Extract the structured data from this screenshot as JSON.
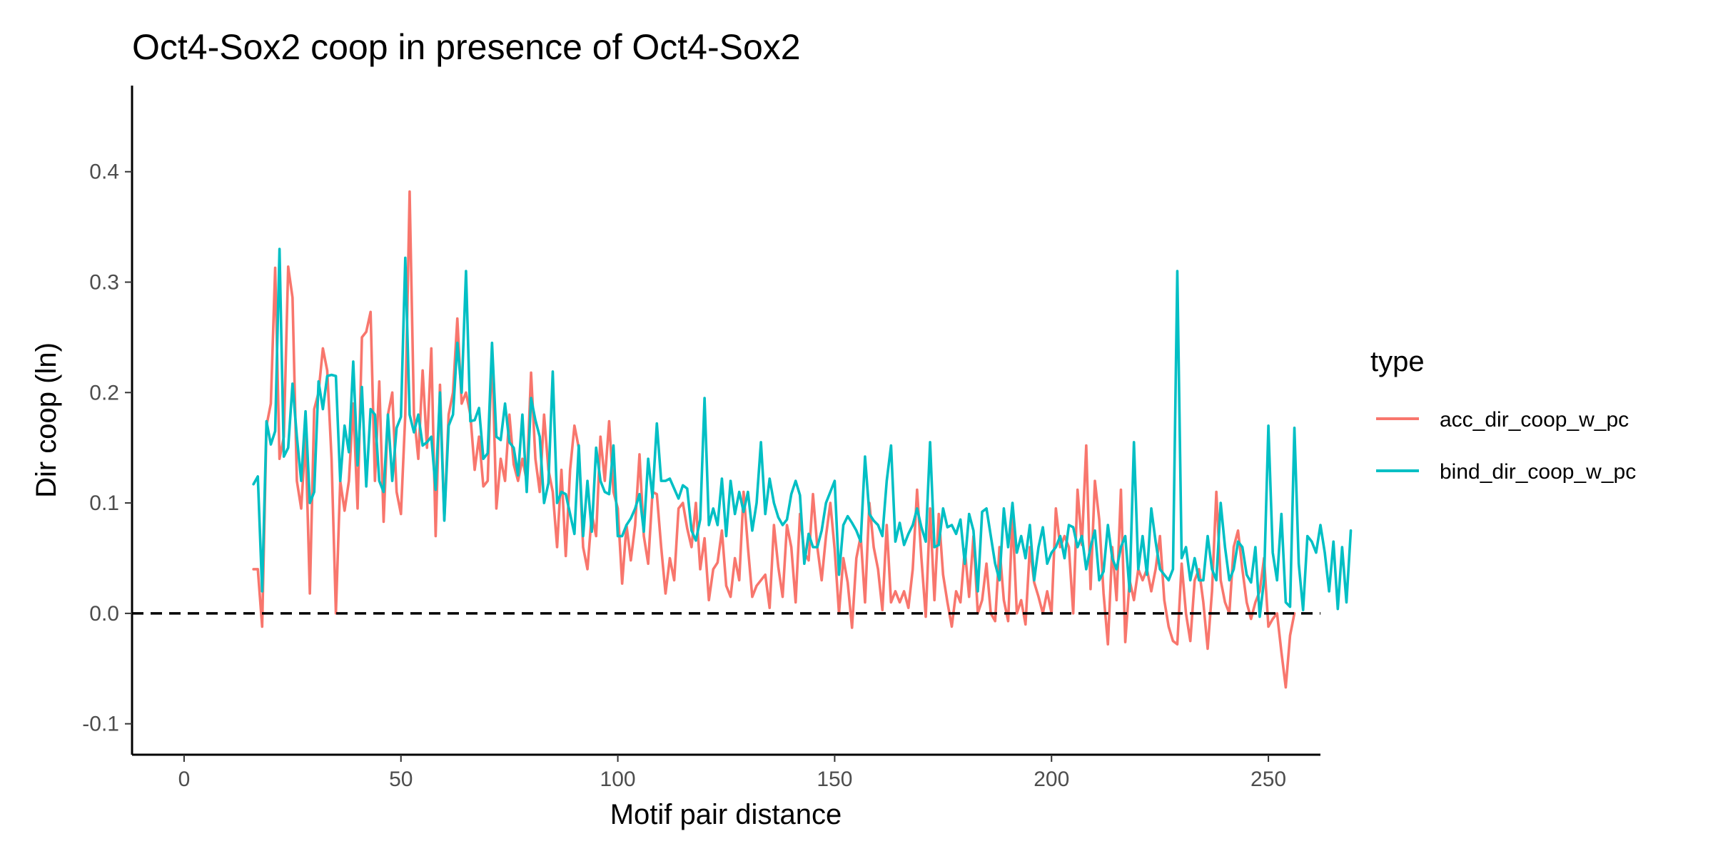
{
  "chart_data": {
    "type": "line",
    "title": "Oct4-Sox2 coop in presence of Oct4-Sox2",
    "xlabel": "Motif pair distance",
    "ylabel": "Dir coop (ln)",
    "xlim": [
      -12,
      262
    ],
    "ylim": [
      -0.128,
      0.478
    ],
    "x_ticks": [
      0,
      50,
      100,
      150,
      200,
      250
    ],
    "y_ticks": [
      -0.1,
      0.0,
      0.1,
      0.2,
      0.3,
      0.4
    ],
    "x_tick_labels": [
      "0",
      "50",
      "100",
      "150",
      "200",
      "250"
    ],
    "y_tick_labels": [
      "-0.1",
      "0.0",
      "0.1",
      "0.2",
      "0.3",
      "0.4"
    ],
    "reference_line": {
      "y": 0.0,
      "style": "dashed",
      "color": "#000000"
    },
    "grid": false,
    "legend": {
      "title": "type",
      "position": "right"
    },
    "series": [
      {
        "name": "acc_dir_coop_w_pc",
        "color": "#F8766D",
        "x_start": 16,
        "values": [
          0.04,
          0.04,
          -0.012,
          0.17,
          0.19,
          0.313,
          0.14,
          0.16,
          0.314,
          0.286,
          0.12,
          0.095,
          0.16,
          0.018,
          0.185,
          0.2,
          0.24,
          0.22,
          0.14,
          0.0,
          0.12,
          0.093,
          0.12,
          0.19,
          0.095,
          0.25,
          0.255,
          0.273,
          0.12,
          0.21,
          0.083,
          0.18,
          0.2,
          0.11,
          0.09,
          0.18,
          0.382,
          0.18,
          0.14,
          0.22,
          0.15,
          0.24,
          0.07,
          0.207,
          0.085,
          0.18,
          0.2,
          0.267,
          0.19,
          0.2,
          0.18,
          0.13,
          0.16,
          0.115,
          0.12,
          0.24,
          0.095,
          0.14,
          0.12,
          0.18,
          0.135,
          0.12,
          0.14,
          0.12,
          0.218,
          0.14,
          0.11,
          0.18,
          0.13,
          0.11,
          0.06,
          0.13,
          0.052,
          0.13,
          0.17,
          0.15,
          0.06,
          0.04,
          0.09,
          0.07,
          0.16,
          0.12,
          0.174,
          0.11,
          0.095,
          0.027,
          0.08,
          0.048,
          0.08,
          0.144,
          0.07,
          0.045,
          0.11,
          0.108,
          0.06,
          0.018,
          0.05,
          0.03,
          0.095,
          0.1,
          0.077,
          0.06,
          0.1,
          0.04,
          0.068,
          0.012,
          0.04,
          0.046,
          0.075,
          0.025,
          0.015,
          0.05,
          0.03,
          0.11,
          0.06,
          0.015,
          0.025,
          0.03,
          0.035,
          0.005,
          0.08,
          0.042,
          0.015,
          0.08,
          0.06,
          0.01,
          0.09,
          0.055,
          0.048,
          0.108,
          0.06,
          0.03,
          0.07,
          0.1,
          0.058,
          0.0,
          0.05,
          0.028,
          -0.013,
          0.05,
          0.07,
          0.01,
          0.1,
          0.06,
          0.04,
          0.003,
          0.08,
          0.01,
          0.02,
          0.01,
          0.02,
          0.005,
          0.04,
          0.112,
          0.05,
          -0.003,
          0.095,
          0.012,
          0.09,
          0.035,
          0.01,
          -0.012,
          0.02,
          0.01,
          0.058,
          0.015,
          0.07,
          0.0,
          0.012,
          0.045,
          0.0,
          -0.007,
          0.06,
          0.012,
          -0.007,
          0.088,
          0.0,
          0.012,
          -0.01,
          0.06,
          0.028,
          0.015,
          0.0,
          0.02,
          0.0,
          0.095,
          0.06,
          0.07,
          0.06,
          0.0,
          0.112,
          0.062,
          0.152,
          0.022,
          0.12,
          0.085,
          0.018,
          -0.028,
          0.06,
          0.012,
          0.112,
          -0.026,
          0.03,
          0.012,
          0.04,
          0.03,
          0.04,
          0.02,
          0.04,
          0.07,
          0.012,
          -0.012,
          -0.025,
          -0.028,
          0.045,
          0.0,
          -0.025,
          0.03,
          0.04,
          0.01,
          -0.032,
          0.02,
          0.11,
          0.03,
          0.01,
          0.0,
          0.06,
          0.075,
          0.04,
          0.01,
          -0.005,
          0.01,
          0.02,
          0.05,
          -0.012,
          -0.005,
          0.0,
          -0.035,
          -0.067,
          -0.02,
          0.0
        ]
      },
      {
        "name": "bind_dir_coop_w_pc",
        "color": "#00BFC4",
        "x_start": 16,
        "values": [
          0.117,
          0.124,
          0.02,
          0.174,
          0.153,
          0.165,
          0.33,
          0.142,
          0.15,
          0.208,
          0.16,
          0.12,
          0.183,
          0.1,
          0.11,
          0.21,
          0.185,
          0.215,
          0.216,
          0.215,
          0.12,
          0.17,
          0.146,
          0.228,
          0.134,
          0.205,
          0.115,
          0.185,
          0.18,
          0.12,
          0.11,
          0.18,
          0.12,
          0.168,
          0.178,
          0.322,
          0.18,
          0.164,
          0.18,
          0.152,
          0.155,
          0.16,
          0.112,
          0.2,
          0.084,
          0.17,
          0.18,
          0.245,
          0.2,
          0.31,
          0.174,
          0.175,
          0.186,
          0.14,
          0.145,
          0.245,
          0.16,
          0.157,
          0.19,
          0.155,
          0.15,
          0.125,
          0.18,
          0.11,
          0.195,
          0.175,
          0.16,
          0.1,
          0.118,
          0.219,
          0.1,
          0.11,
          0.108,
          0.09,
          0.072,
          0.152,
          0.07,
          0.12,
          0.074,
          0.15,
          0.12,
          0.11,
          0.108,
          0.152,
          0.07,
          0.07,
          0.08,
          0.086,
          0.095,
          0.108,
          0.074,
          0.14,
          0.105,
          0.172,
          0.12,
          0.12,
          0.122,
          0.113,
          0.104,
          0.116,
          0.113,
          0.075,
          0.066,
          0.085,
          0.195,
          0.08,
          0.095,
          0.08,
          0.122,
          0.07,
          0.12,
          0.09,
          0.11,
          0.092,
          0.11,
          0.075,
          0.1,
          0.155,
          0.09,
          0.122,
          0.1,
          0.087,
          0.08,
          0.085,
          0.108,
          0.12,
          0.107,
          0.045,
          0.072,
          0.06,
          0.06,
          0.075,
          0.1,
          0.11,
          0.12,
          0.035,
          0.08,
          0.088,
          0.082,
          0.075,
          0.065,
          0.142,
          0.09,
          0.084,
          0.08,
          0.07,
          0.12,
          0.152,
          0.065,
          0.082,
          0.062,
          0.072,
          0.08,
          0.095,
          0.078,
          0.065,
          0.155,
          0.06,
          0.062,
          0.095,
          0.078,
          0.08,
          0.072,
          0.085,
          0.045,
          0.09,
          0.075,
          0.02,
          0.092,
          0.095,
          0.07,
          0.045,
          0.03,
          0.095,
          0.06,
          0.1,
          0.055,
          0.07,
          0.05,
          0.08,
          0.03,
          0.06,
          0.078,
          0.045,
          0.055,
          0.06,
          0.07,
          0.05,
          0.08,
          0.078,
          0.06,
          0.07,
          0.04,
          0.06,
          0.075,
          0.03,
          0.038,
          0.08,
          0.05,
          0.04,
          0.06,
          0.07,
          0.02,
          0.155,
          0.04,
          0.07,
          0.035,
          0.095,
          0.065,
          0.04,
          0.035,
          0.03,
          0.04,
          0.31,
          0.05,
          0.06,
          0.03,
          0.05,
          0.03,
          0.03,
          0.07,
          0.04,
          0.03,
          0.1,
          0.06,
          0.03,
          0.04,
          0.065,
          0.06,
          0.035,
          0.028,
          0.06,
          -0.003,
          0.03,
          0.17,
          0.055,
          0.03,
          0.09,
          0.01,
          0.006,
          0.168,
          0.045,
          0.003,
          0.07,
          0.065,
          0.055,
          0.08,
          0.055,
          0.02,
          0.065,
          0.004,
          0.06,
          0.01,
          0.075
        ]
      }
    ]
  }
}
